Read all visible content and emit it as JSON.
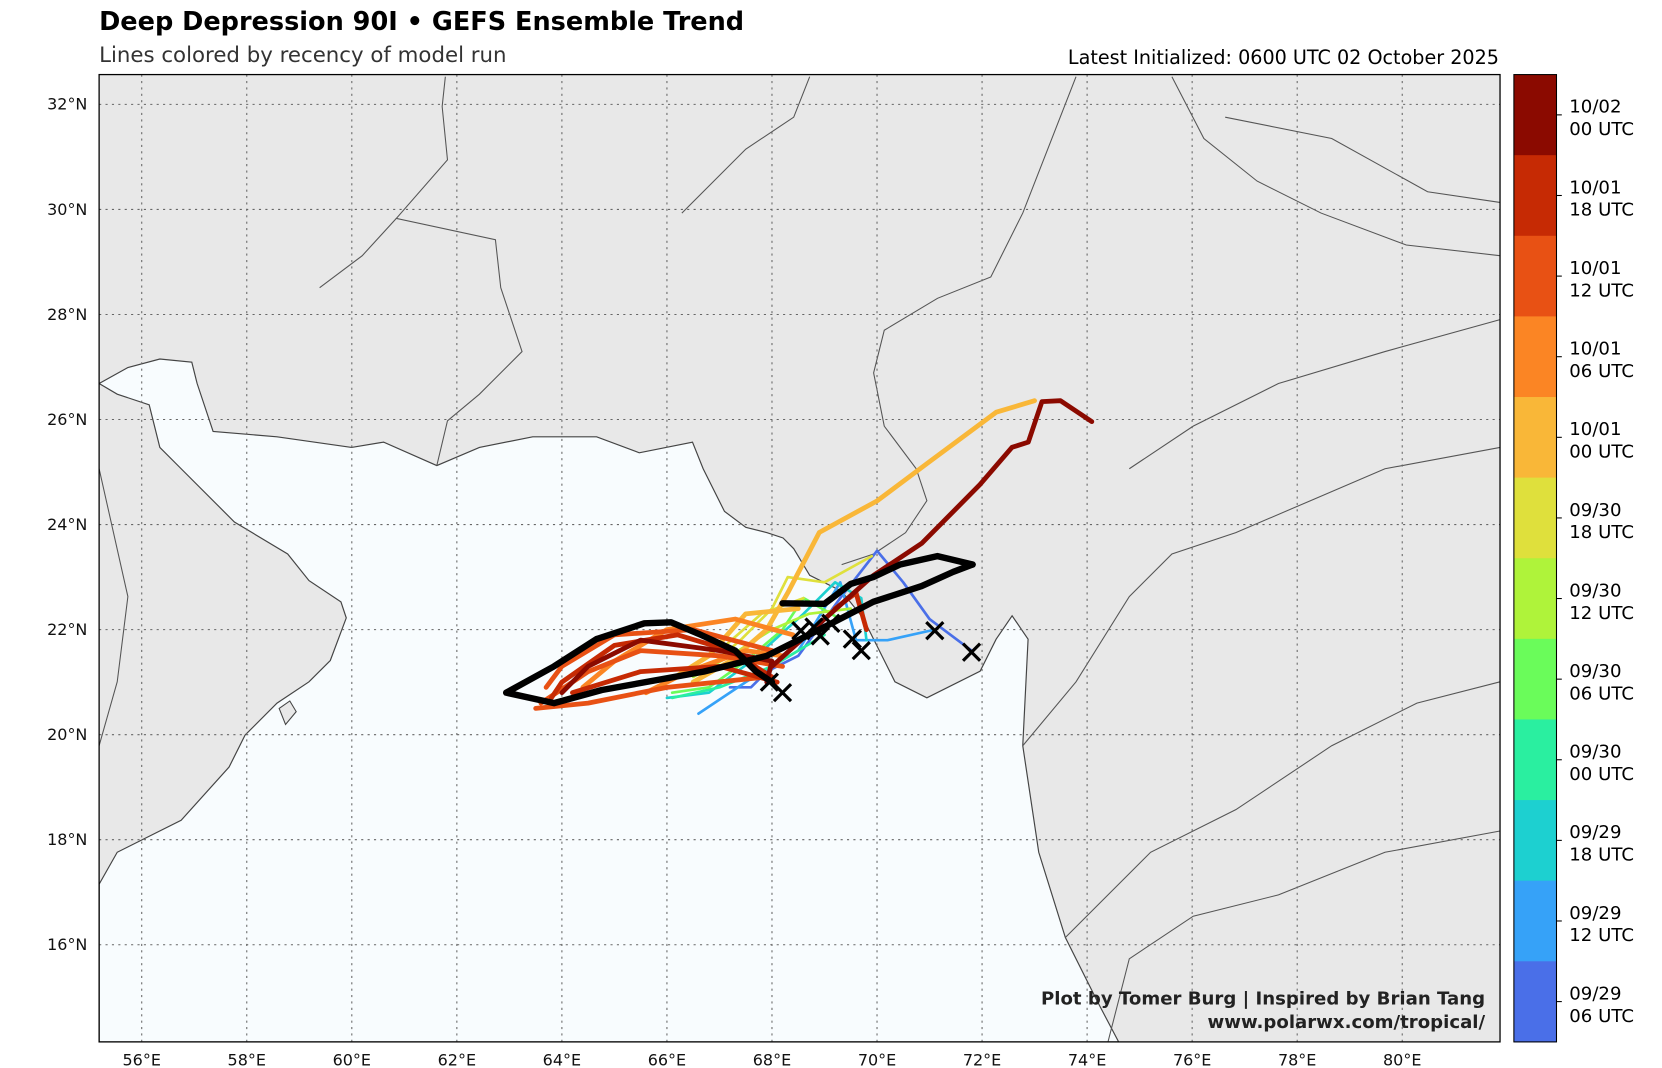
{
  "header": {
    "title": "Deep Depression 90I • GEFS Ensemble Trend",
    "subtitle": "Lines colored by recency of model run",
    "latest_initialized": "Latest Initialized: 0600 UTC 02 October 2025"
  },
  "credit": {
    "line1": "Plot by Tomer Burg | Inspired by Brian Tang",
    "line2": "www.polarwx.com/tropical/"
  },
  "colors": {
    "land": "#e8e8e8",
    "ocean": "#f8fcfe",
    "mean_track": "#000000"
  },
  "chart_data": {
    "type": "map-tracks",
    "lon_ticks": [
      "56°E",
      "58°E",
      "60°E",
      "62°E",
      "64°E",
      "66°E",
      "68°E",
      "70°E",
      "72°E",
      "74°E",
      "76°E",
      "78°E",
      "80°E"
    ],
    "lat_ticks": [
      "16°N",
      "18°N",
      "20°N",
      "22°N",
      "24°N",
      "26°N",
      "28°N",
      "30°N",
      "32°N"
    ],
    "lon_values": [
      56,
      58,
      60,
      62,
      64,
      66,
      68,
      70,
      72,
      74,
      76,
      78,
      80
    ],
    "lat_values": [
      16,
      18,
      20,
      22,
      24,
      26,
      28,
      30,
      32
    ],
    "lon_range": [
      55.2,
      81.9
    ],
    "lat_range": [
      14.1,
      32.6
    ],
    "grid": true,
    "colorbar": [
      {
        "label1": "10/02",
        "label2": "00 UTC",
        "color": "#8b0a00"
      },
      {
        "label1": "10/01",
        "label2": "18 UTC",
        "color": "#c62a04"
      },
      {
        "label1": "10/01",
        "label2": "12 UTC",
        "color": "#e85114"
      },
      {
        "label1": "10/01",
        "label2": "06 UTC",
        "color": "#fb8524"
      },
      {
        "label1": "10/01",
        "label2": "00 UTC",
        "color": "#f9b738"
      },
      {
        "label1": "09/30",
        "label2": "18 UTC",
        "color": "#dfe03c"
      },
      {
        "label1": "09/30",
        "label2": "12 UTC",
        "color": "#aff33a"
      },
      {
        "label1": "09/30",
        "label2": "06 UTC",
        "color": "#6afc5a"
      },
      {
        "label1": "09/30",
        "label2": "00 UTC",
        "color": "#2aefa0"
      },
      {
        "label1": "09/29",
        "label2": "18 UTC",
        "color": "#1dd0d0"
      },
      {
        "label1": "09/29",
        "label2": "12 UTC",
        "color": "#36a2f8"
      },
      {
        "label1": "09/29",
        "label2": "06 UTC",
        "color": "#4a6fe8"
      }
    ],
    "tracks": [
      {
        "run": 11,
        "points": [
          [
            71.8,
            21.6
          ],
          [
            71.0,
            22.2
          ],
          [
            70.5,
            22.9
          ],
          [
            70.0,
            23.5
          ],
          [
            69.3,
            22.6
          ],
          [
            68.5,
            21.5
          ],
          [
            67.9,
            21.2
          ],
          [
            67.6,
            20.9
          ],
          [
            67.2,
            20.9
          ]
        ]
      },
      {
        "run": 10,
        "points": [
          [
            71.1,
            22.0
          ],
          [
            70.2,
            21.8
          ],
          [
            69.6,
            21.8
          ],
          [
            69.3,
            22.9
          ],
          [
            68.5,
            21.6
          ],
          [
            67.5,
            21.0
          ],
          [
            66.6,
            20.4
          ]
        ]
      },
      {
        "run": 9,
        "points": [
          [
            69.8,
            21.8
          ],
          [
            69.7,
            22.6
          ],
          [
            69.2,
            22.9
          ],
          [
            68.6,
            22.3
          ],
          [
            67.6,
            21.4
          ],
          [
            66.8,
            20.8
          ],
          [
            66.0,
            20.7
          ]
        ]
      },
      {
        "run": 8,
        "points": [
          [
            69.0,
            21.9
          ],
          [
            68.0,
            21.3
          ],
          [
            67.0,
            20.9
          ],
          [
            66.1,
            20.7
          ]
        ]
      },
      {
        "run": 7,
        "points": [
          [
            69.3,
            22.2
          ],
          [
            68.6,
            22.6
          ],
          [
            68.2,
            22.0
          ],
          [
            67.5,
            21.4
          ],
          [
            66.8,
            20.9
          ],
          [
            66.1,
            20.8
          ]
        ]
      },
      {
        "run": 6,
        "points": [
          [
            69.5,
            22.4
          ],
          [
            68.7,
            22.3
          ],
          [
            68.0,
            22.0
          ],
          [
            67.2,
            21.5
          ],
          [
            66.5,
            21.1
          ]
        ]
      },
      {
        "run": 5,
        "points": [
          [
            69.9,
            23.4
          ],
          [
            69.0,
            22.9
          ],
          [
            68.3,
            23.0
          ],
          [
            68.0,
            22.4
          ],
          [
            67.4,
            21.8
          ],
          [
            66.7,
            21.2
          ]
        ]
      },
      {
        "run": 5,
        "points": [
          [
            68.6,
            22.6
          ],
          [
            67.8,
            22.3
          ],
          [
            67.0,
            21.6
          ]
        ]
      },
      {
        "run": 4,
        "points": [
          [
            66.5,
            21.0
          ],
          [
            67.2,
            21.4
          ],
          [
            67.9,
            22.0
          ],
          [
            68.3,
            22.7
          ],
          [
            68.9,
            23.85
          ],
          [
            70.0,
            24.45
          ],
          [
            70.95,
            25.16
          ],
          [
            72.27,
            26.14
          ],
          [
            73.0,
            26.36
          ]
        ]
      },
      {
        "run": 4,
        "points": [
          [
            68.5,
            22.4
          ],
          [
            67.5,
            22.3
          ],
          [
            66.8,
            21.5
          ],
          [
            66.0,
            21.0
          ]
        ]
      },
      {
        "run": 3,
        "points": [
          [
            68.4,
            21.9
          ],
          [
            67.3,
            22.2
          ],
          [
            66.0,
            22.0
          ],
          [
            65.0,
            21.4
          ],
          [
            64.4,
            20.9
          ]
        ]
      },
      {
        "run": 3,
        "points": [
          [
            68.2,
            21.5
          ],
          [
            67.5,
            21.6
          ],
          [
            66.4,
            21.2
          ],
          [
            65.6,
            20.8
          ]
        ]
      },
      {
        "run": 2,
        "points": [
          [
            68.2,
            21.3
          ],
          [
            67.0,
            21.5
          ],
          [
            65.5,
            21.6
          ],
          [
            64.5,
            21.2
          ],
          [
            63.6,
            20.6
          ]
        ]
      },
      {
        "run": 2,
        "points": [
          [
            68.0,
            21.6
          ],
          [
            66.5,
            22.0
          ],
          [
            65.0,
            21.9
          ],
          [
            64.0,
            21.3
          ],
          [
            63.7,
            20.9
          ]
        ]
      },
      {
        "run": 2,
        "points": [
          [
            67.9,
            21.1
          ],
          [
            66.0,
            20.9
          ],
          [
            64.5,
            20.6
          ],
          [
            63.5,
            20.5
          ]
        ]
      },
      {
        "run": 1,
        "points": [
          [
            68.0,
            21.1
          ],
          [
            67.2,
            21.6
          ],
          [
            66.2,
            21.9
          ],
          [
            65.0,
            21.7
          ],
          [
            64.0,
            21.0
          ],
          [
            63.8,
            20.7
          ]
        ]
      },
      {
        "run": 1,
        "points": [
          [
            68.1,
            21.0
          ],
          [
            67.0,
            21.3
          ],
          [
            65.5,
            21.2
          ],
          [
            64.2,
            20.8
          ]
        ]
      },
      {
        "run": 1,
        "points": [
          [
            69.8,
            22.0
          ],
          [
            69.6,
            22.7
          ],
          [
            69.2,
            22.4
          ]
        ]
      },
      {
        "run": 0,
        "points": [
          [
            67.9,
            21.0
          ],
          [
            68.0,
            21.4
          ],
          [
            67.0,
            21.6
          ],
          [
            65.5,
            21.8
          ],
          [
            64.5,
            21.3
          ],
          [
            64.0,
            20.8
          ]
        ]
      },
      {
        "run": 0,
        "points": [
          [
            68.0,
            21.3
          ],
          [
            69.0,
            22.2
          ],
          [
            69.93,
            23.03
          ],
          [
            70.85,
            23.64
          ],
          [
            71.96,
            24.76
          ],
          [
            72.57,
            25.47
          ],
          [
            72.88,
            25.57
          ],
          [
            73.14,
            26.34
          ],
          [
            73.49,
            26.36
          ],
          [
            74.09,
            25.96
          ]
        ]
      }
    ],
    "mean_tracks": [
      {
        "points": [
          [
            68.0,
            21.0
          ],
          [
            67.7,
            21.2
          ],
          [
            67.3,
            21.6
          ],
          [
            66.6,
            21.92
          ],
          [
            66.08,
            22.14
          ],
          [
            65.57,
            22.12
          ],
          [
            64.66,
            21.82
          ],
          [
            63.85,
            21.3
          ],
          [
            62.94,
            20.8
          ],
          [
            63.85,
            20.6
          ],
          [
            64.76,
            20.85
          ],
          [
            66.7,
            21.2
          ],
          [
            67.9,
            21.5
          ],
          [
            68.9,
            22.0
          ],
          [
            69.93,
            22.53
          ],
          [
            70.85,
            22.83
          ],
          [
            71.45,
            23.1
          ],
          [
            71.82,
            23.24
          ]
        ]
      },
      {
        "points": [
          [
            71.82,
            23.24
          ],
          [
            71.15,
            23.4
          ],
          [
            70.44,
            23.24
          ],
          [
            69.93,
            23.0
          ],
          [
            69.5,
            22.87
          ],
          [
            69.0,
            22.49
          ],
          [
            68.2,
            22.5
          ]
        ]
      }
    ],
    "initial_positions": [
      [
        67.95,
        21.0
      ],
      [
        68.2,
        20.8
      ],
      [
        68.55,
        21.98
      ],
      [
        68.92,
        21.88
      ],
      [
        69.12,
        22.12
      ],
      [
        69.53,
        21.82
      ],
      [
        69.7,
        21.6
      ],
      [
        71.1,
        21.98
      ],
      [
        71.8,
        21.57
      ],
      [
        68.8,
        22.05
      ]
    ]
  }
}
